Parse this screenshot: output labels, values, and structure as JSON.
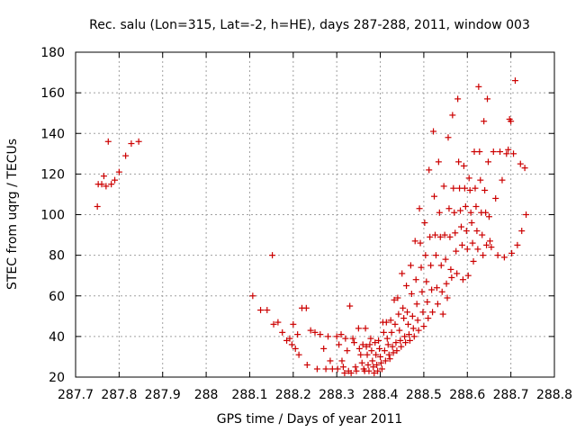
{
  "chart_data": {
    "type": "scatter",
    "title": "Rec. salu (Lon=315, Lat=-2, h=HE), days 287-288, 2011, window 003",
    "xlabel": "GPS time / Days of year 2011",
    "ylabel": "STEC from uqrg / TECUs",
    "xlim": [
      287.7,
      288.8
    ],
    "ylim": [
      20,
      180
    ],
    "x_ticks": [
      "287.7",
      "287.8",
      "287.9",
      "288",
      "288.1",
      "288.2",
      "288.3",
      "288.4",
      "288.5",
      "288.6",
      "288.7",
      "288.8"
    ],
    "y_ticks": [
      "20",
      "40",
      "60",
      "80",
      "100",
      "120",
      "140",
      "160",
      "180"
    ],
    "x_tick_values": [
      287.7,
      287.8,
      287.9,
      288.0,
      288.1,
      288.2,
      288.3,
      288.4,
      288.5,
      288.6,
      288.7,
      288.8
    ],
    "y_tick_values": [
      20,
      40,
      60,
      80,
      100,
      120,
      140,
      160,
      180
    ],
    "grid": true,
    "marker": "plus",
    "color": "#cc0000",
    "points": [
      [
        287.75,
        104
      ],
      [
        287.752,
        115
      ],
      [
        287.76,
        115
      ],
      [
        287.765,
        119
      ],
      [
        287.77,
        114
      ],
      [
        287.775,
        136
      ],
      [
        287.782,
        115
      ],
      [
        287.79,
        117
      ],
      [
        287.8,
        121
      ],
      [
        287.815,
        129
      ],
      [
        287.828,
        135
      ],
      [
        287.845,
        136
      ],
      [
        288.107,
        60
      ],
      [
        288.125,
        53
      ],
      [
        288.14,
        53
      ],
      [
        288.152,
        80
      ],
      [
        288.155,
        46
      ],
      [
        288.165,
        47
      ],
      [
        288.175,
        42
      ],
      [
        288.185,
        38
      ],
      [
        288.192,
        39
      ],
      [
        288.197,
        36
      ],
      [
        288.2,
        46
      ],
      [
        288.205,
        34
      ],
      [
        288.21,
        41
      ],
      [
        288.213,
        31
      ],
      [
        288.22,
        54
      ],
      [
        288.23,
        54
      ],
      [
        288.232,
        26
      ],
      [
        288.24,
        43
      ],
      [
        288.25,
        42
      ],
      [
        288.255,
        24
      ],
      [
        288.262,
        41
      ],
      [
        288.27,
        34
      ],
      [
        288.275,
        24
      ],
      [
        288.28,
        40
      ],
      [
        288.285,
        28
      ],
      [
        288.29,
        24
      ],
      [
        288.3,
        40
      ],
      [
        288.302,
        24
      ],
      [
        288.305,
        36
      ],
      [
        288.31,
        41
      ],
      [
        288.312,
        28
      ],
      [
        288.315,
        25
      ],
      [
        288.318,
        22
      ],
      [
        288.32,
        39
      ],
      [
        288.324,
        33
      ],
      [
        288.327,
        23
      ],
      [
        288.33,
        55
      ],
      [
        288.333,
        22
      ],
      [
        288.337,
        39
      ],
      [
        288.34,
        37
      ],
      [
        288.343,
        25
      ],
      [
        288.345,
        23
      ],
      [
        288.35,
        44
      ],
      [
        288.352,
        34
      ],
      [
        288.355,
        31
      ],
      [
        288.358,
        27
      ],
      [
        288.36,
        36
      ],
      [
        288.362,
        24
      ],
      [
        288.364,
        23
      ],
      [
        288.366,
        44
      ],
      [
        288.368,
        35
      ],
      [
        288.37,
        31
      ],
      [
        288.372,
        26
      ],
      [
        288.374,
        23
      ],
      [
        288.376,
        36
      ],
      [
        288.378,
        39
      ],
      [
        288.38,
        33
      ],
      [
        288.382,
        28
      ],
      [
        288.384,
        25
      ],
      [
        288.386,
        22
      ],
      [
        288.388,
        37
      ],
      [
        288.39,
        31
      ],
      [
        288.392,
        26
      ],
      [
        288.394,
        23
      ],
      [
        288.396,
        38
      ],
      [
        288.398,
        34
      ],
      [
        288.4,
        30
      ],
      [
        288.402,
        27
      ],
      [
        288.404,
        24
      ],
      [
        288.406,
        47
      ],
      [
        288.408,
        42
      ],
      [
        288.41,
        33
      ],
      [
        288.412,
        28
      ],
      [
        288.414,
        47
      ],
      [
        288.416,
        39
      ],
      [
        288.418,
        36
      ],
      [
        288.42,
        31
      ],
      [
        288.422,
        29
      ],
      [
        288.424,
        48
      ],
      [
        288.426,
        42
      ],
      [
        288.428,
        35
      ],
      [
        288.43,
        32
      ],
      [
        288.432,
        58
      ],
      [
        288.434,
        46
      ],
      [
        288.436,
        37
      ],
      [
        288.438,
        33
      ],
      [
        288.44,
        59
      ],
      [
        288.442,
        51
      ],
      [
        288.444,
        43
      ],
      [
        288.446,
        38
      ],
      [
        288.448,
        35
      ],
      [
        288.45,
        71
      ],
      [
        288.452,
        54
      ],
      [
        288.454,
        49
      ],
      [
        288.456,
        40
      ],
      [
        288.458,
        37
      ],
      [
        288.46,
        65
      ],
      [
        288.462,
        52
      ],
      [
        288.464,
        46
      ],
      [
        288.466,
        41
      ],
      [
        288.468,
        38
      ],
      [
        288.47,
        75
      ],
      [
        288.472,
        61
      ],
      [
        288.474,
        50
      ],
      [
        288.476,
        44
      ],
      [
        288.478,
        40
      ],
      [
        288.48,
        87
      ],
      [
        288.482,
        68
      ],
      [
        288.484,
        56
      ],
      [
        288.486,
        48
      ],
      [
        288.488,
        43
      ],
      [
        288.49,
        103
      ],
      [
        288.492,
        86
      ],
      [
        288.494,
        74
      ],
      [
        288.496,
        62
      ],
      [
        288.498,
        52
      ],
      [
        288.5,
        45
      ],
      [
        288.502,
        96
      ],
      [
        288.504,
        80
      ],
      [
        288.506,
        67
      ],
      [
        288.508,
        57
      ],
      [
        288.51,
        49
      ],
      [
        288.512,
        122
      ],
      [
        288.514,
        89
      ],
      [
        288.516,
        75
      ],
      [
        288.518,
        63
      ],
      [
        288.52,
        52
      ],
      [
        288.522,
        141
      ],
      [
        288.524,
        109
      ],
      [
        288.526,
        90
      ],
      [
        288.528,
        80
      ],
      [
        288.53,
        64
      ],
      [
        288.532,
        56
      ],
      [
        288.534,
        126
      ],
      [
        288.536,
        101
      ],
      [
        288.538,
        89
      ],
      [
        288.54,
        75
      ],
      [
        288.542,
        62
      ],
      [
        288.544,
        51
      ],
      [
        288.546,
        114
      ],
      [
        288.548,
        90
      ],
      [
        288.55,
        78
      ],
      [
        288.552,
        66
      ],
      [
        288.554,
        59
      ],
      [
        288.556,
        138
      ],
      [
        288.558,
        103
      ],
      [
        288.56,
        89
      ],
      [
        288.562,
        73
      ],
      [
        288.564,
        69
      ],
      [
        288.566,
        149
      ],
      [
        288.568,
        113
      ],
      [
        288.57,
        101
      ],
      [
        288.572,
        91
      ],
      [
        288.574,
        82
      ],
      [
        288.576,
        71
      ],
      [
        288.578,
        157
      ],
      [
        288.58,
        126
      ],
      [
        288.582,
        113
      ],
      [
        288.584,
        102
      ],
      [
        288.586,
        94
      ],
      [
        288.588,
        85
      ],
      [
        288.59,
        68
      ],
      [
        288.592,
        124
      ],
      [
        288.594,
        113
      ],
      [
        288.596,
        104
      ],
      [
        288.598,
        92
      ],
      [
        288.6,
        83
      ],
      [
        288.602,
        70
      ],
      [
        288.604,
        118
      ],
      [
        288.606,
        112
      ],
      [
        288.608,
        101
      ],
      [
        288.61,
        96
      ],
      [
        288.612,
        86
      ],
      [
        288.614,
        77
      ],
      [
        288.616,
        131
      ],
      [
        288.618,
        113
      ],
      [
        288.62,
        104
      ],
      [
        288.622,
        92
      ],
      [
        288.624,
        83
      ],
      [
        288.626,
        163
      ],
      [
        288.628,
        131
      ],
      [
        288.63,
        117
      ],
      [
        288.632,
        101
      ],
      [
        288.634,
        90
      ],
      [
        288.636,
        80
      ],
      [
        288.638,
        146
      ],
      [
        288.64,
        112
      ],
      [
        288.642,
        101
      ],
      [
        288.644,
        85
      ],
      [
        288.646,
        157
      ],
      [
        288.648,
        126
      ],
      [
        288.65,
        99
      ],
      [
        288.652,
        87
      ],
      [
        288.655,
        84
      ],
      [
        288.66,
        131
      ],
      [
        288.665,
        108
      ],
      [
        288.67,
        80
      ],
      [
        288.675,
        131
      ],
      [
        288.68,
        117
      ],
      [
        288.685,
        79
      ],
      [
        288.69,
        130
      ],
      [
        288.694,
        132
      ],
      [
        288.697,
        147
      ],
      [
        288.7,
        146
      ],
      [
        288.702,
        81
      ],
      [
        288.706,
        130
      ],
      [
        288.71,
        166
      ],
      [
        288.715,
        85
      ],
      [
        288.722,
        125
      ],
      [
        288.725,
        92
      ],
      [
        288.732,
        123
      ],
      [
        288.735,
        100
      ]
    ]
  }
}
